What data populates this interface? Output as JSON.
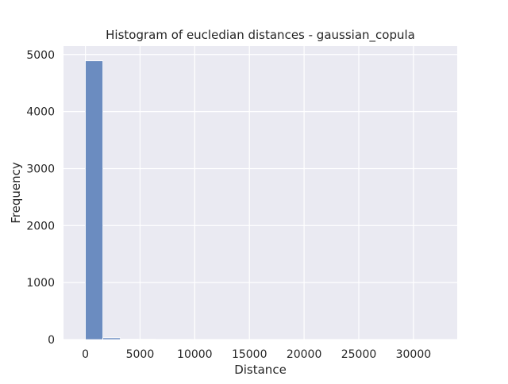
{
  "chart_data": {
    "type": "bar",
    "subtype": "histogram",
    "title": "Histogram of eucledian distances - gaussian_copula",
    "xlabel": "Distance",
    "ylabel": "Frequency",
    "xlim": [
      -2000,
      34000
    ],
    "ylim": [
      0,
      5150
    ],
    "x_ticks": [
      0,
      5000,
      10000,
      15000,
      20000,
      25000,
      30000
    ],
    "x_tick_labels": [
      "0",
      "5000",
      "10000",
      "15000",
      "20000",
      "25000",
      "30000"
    ],
    "y_ticks": [
      0,
      1000,
      2000,
      3000,
      4000,
      5000
    ],
    "y_tick_labels": [
      "0",
      "1000",
      "2000",
      "3000",
      "4000",
      "5000"
    ],
    "bins": [
      {
        "x0": 0,
        "x1": 1600,
        "count": 4890
      },
      {
        "x0": 1600,
        "x1": 3200,
        "count": 30
      },
      {
        "x0": 3200,
        "x1": 4800,
        "count": 8
      },
      {
        "x0": 4800,
        "x1": 6400,
        "count": 5
      },
      {
        "x0": 6400,
        "x1": 8000,
        "count": 3
      },
      {
        "x0": 8000,
        "x1": 9600,
        "count": 2
      },
      {
        "x0": 9600,
        "x1": 11200,
        "count": 1
      },
      {
        "x0": 11200,
        "x1": 12800,
        "count": 1
      },
      {
        "x0": 12800,
        "x1": 14400,
        "count": 1
      },
      {
        "x0": 14400,
        "x1": 16000,
        "count": 0
      },
      {
        "x0": 16000,
        "x1": 17600,
        "count": 1
      },
      {
        "x0": 17600,
        "x1": 19200,
        "count": 0
      },
      {
        "x0": 19200,
        "x1": 20800,
        "count": 0
      },
      {
        "x0": 20800,
        "x1": 22400,
        "count": 1
      },
      {
        "x0": 22400,
        "x1": 24000,
        "count": 0
      },
      {
        "x0": 24000,
        "x1": 25600,
        "count": 0
      },
      {
        "x0": 25600,
        "x1": 27200,
        "count": 0
      },
      {
        "x0": 27200,
        "x1": 28800,
        "count": 0
      },
      {
        "x0": 28800,
        "x1": 30400,
        "count": 0
      },
      {
        "x0": 30400,
        "x1": 32000,
        "count": 1
      }
    ],
    "grid": true,
    "colors": {
      "bar_fill": "#6B8CC0",
      "bar_edge": "#ffffff",
      "plot_background": "#EAEAF2",
      "grid": "#ffffff"
    }
  }
}
